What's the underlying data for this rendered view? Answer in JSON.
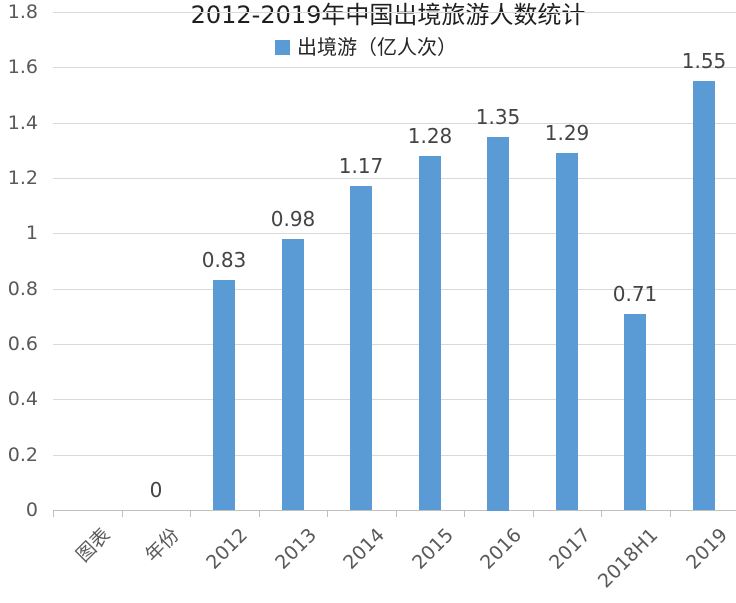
{
  "chart_data": {
    "type": "bar",
    "title": "2012-2019年中国出境旅游人数统计",
    "categories": [
      "图表",
      "年份",
      "2012",
      "2013",
      "2014",
      "2015",
      "2016",
      "2017",
      "2018H1",
      "2019"
    ],
    "series": [
      {
        "name": "出境游（亿人次）",
        "values": [
          null,
          0,
          0.83,
          0.98,
          1.17,
          1.28,
          1.35,
          1.29,
          0.71,
          1.55
        ]
      }
    ],
    "data_labels": [
      null,
      "0",
      "0.83",
      "0.98",
      "1.17",
      "1.28",
      "1.35",
      "1.29",
      "0.71",
      "1.55"
    ],
    "xlabel": "",
    "ylabel": "",
    "ylim": [
      0,
      1.8
    ],
    "ytick_labels": [
      "0",
      "0.2",
      "0.4",
      "0.6",
      "0.8",
      "1",
      "1.2",
      "1.4",
      "1.6",
      "1.8"
    ],
    "grid": true,
    "legend_position": "top-center",
    "bar_color": "#5B9BD5",
    "colors": {
      "grid": "#D9D9D9",
      "axis": "#BFBFBF",
      "tick_label": "#595959",
      "data_label": "#444444",
      "title": "#1f1f1f"
    }
  }
}
